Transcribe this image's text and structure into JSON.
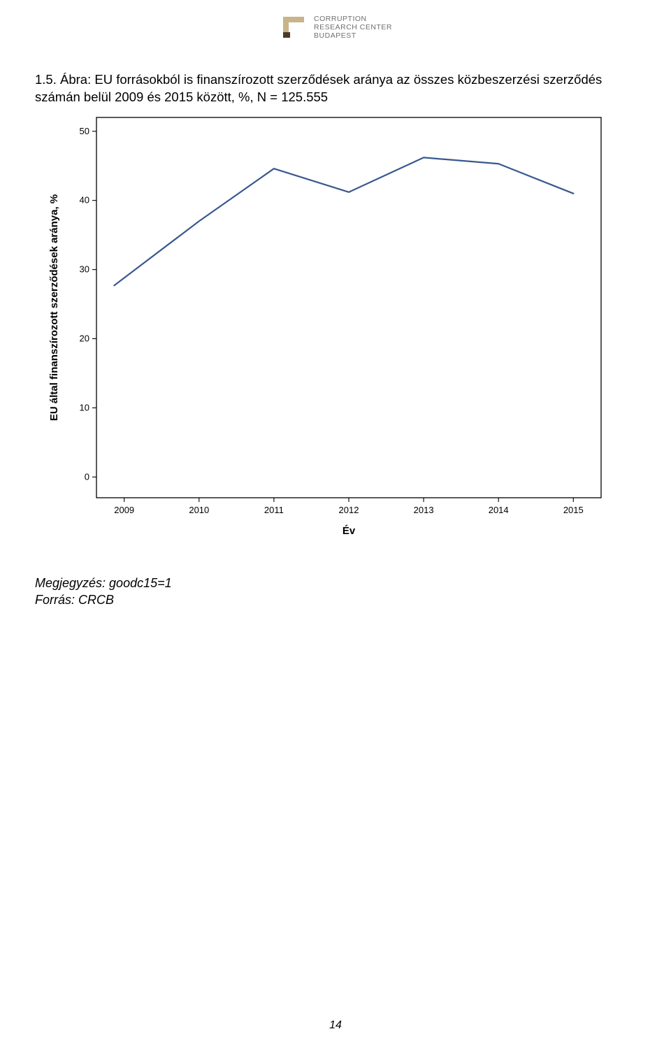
{
  "header": {
    "org_line1": "CORRUPTION",
    "org_line2": "RESEARCH CENTER",
    "org_line3": "BUDAPEST",
    "logo_colors": {
      "outer": "#c9b389",
      "cut": "#4b3a2a"
    }
  },
  "title": "1.5. Ábra: EU forrásokból is finanszírozott szerződések aránya az összes közbeszerzési szerződés számán belül 2009 és 2015 között, %, N = 125.555",
  "chart": {
    "type": "line",
    "xlabel": "Év",
    "ylabel": "EU által finanszírozott szerződések aránya, %",
    "x_categories": [
      "2009",
      "2010",
      "2011",
      "2012",
      "2013",
      "2014",
      "2015"
    ],
    "y_values": [
      28.8,
      37.0,
      44.6,
      41.2,
      46.2,
      45.3,
      41.0
    ],
    "ylim": [
      -3,
      52
    ],
    "y_ticks": [
      0,
      10,
      20,
      30,
      40,
      50
    ],
    "line_color": "#39588f",
    "line_width": 2.2,
    "border_color": "#000000",
    "tick_color": "#000000",
    "text_color": "#000000",
    "background_color": "#ffffff",
    "label_fontsize": 13,
    "tick_fontsize": 13,
    "axis_title_fontsize": 15,
    "axis_title_weight": "bold"
  },
  "notes": {
    "line1": "Megjegyzés: goodc15=1",
    "line2": "Forrás: CRCB"
  },
  "page_number": "14"
}
